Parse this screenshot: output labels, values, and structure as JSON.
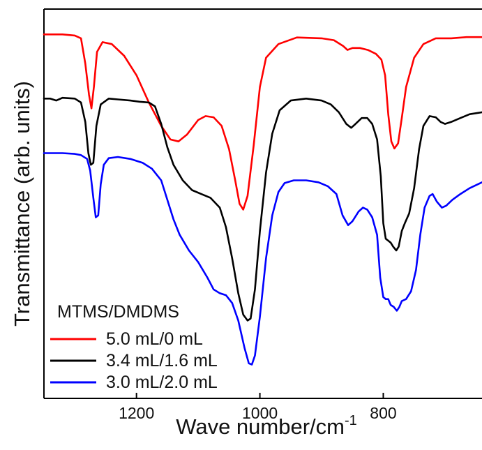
{
  "chart_data": {
    "type": "line",
    "xlabel": "Wave number/cm",
    "xlabel_superscript": "-1",
    "ylabel": "Transmittance (arb. units)",
    "xlim": [
      1350,
      640
    ],
    "ylim": [
      0,
      1
    ],
    "x_reversed": true,
    "grid": false,
    "y_ticks_labeled": false,
    "x_ticks": [
      {
        "value": 1200,
        "label": "1200"
      },
      {
        "value": 1000,
        "label": "1000"
      },
      {
        "value": 800,
        "label": "800"
      }
    ],
    "legend": {
      "title": "MTMS/DMDMS",
      "position": "bottom-left"
    },
    "series": [
      {
        "name": "5.0 mL/0 mL",
        "color": "#ff0000",
        "points": [
          [
            1350,
            0.935
          ],
          [
            1320,
            0.935
          ],
          [
            1300,
            0.932
          ],
          [
            1290,
            0.925
          ],
          [
            1283,
            0.86
          ],
          [
            1277,
            0.78
          ],
          [
            1273,
            0.745
          ],
          [
            1269,
            0.8
          ],
          [
            1264,
            0.89
          ],
          [
            1255,
            0.915
          ],
          [
            1240,
            0.91
          ],
          [
            1220,
            0.88
          ],
          [
            1200,
            0.83
          ],
          [
            1180,
            0.76
          ],
          [
            1160,
            0.7
          ],
          [
            1145,
            0.665
          ],
          [
            1132,
            0.66
          ],
          [
            1118,
            0.678
          ],
          [
            1100,
            0.715
          ],
          [
            1088,
            0.725
          ],
          [
            1075,
            0.722
          ],
          [
            1062,
            0.7
          ],
          [
            1050,
            0.64
          ],
          [
            1040,
            0.56
          ],
          [
            1033,
            0.5
          ],
          [
            1027,
            0.485
          ],
          [
            1020,
            0.52
          ],
          [
            1010,
            0.65
          ],
          [
            1000,
            0.8
          ],
          [
            990,
            0.875
          ],
          [
            970,
            0.91
          ],
          [
            940,
            0.927
          ],
          [
            900,
            0.925
          ],
          [
            880,
            0.92
          ],
          [
            865,
            0.905
          ],
          [
            858,
            0.895
          ],
          [
            850,
            0.9
          ],
          [
            838,
            0.9
          ],
          [
            825,
            0.895
          ],
          [
            812,
            0.885
          ],
          [
            803,
            0.87
          ],
          [
            797,
            0.83
          ],
          [
            792,
            0.73
          ],
          [
            787,
            0.66
          ],
          [
            782,
            0.642
          ],
          [
            776,
            0.655
          ],
          [
            770,
            0.72
          ],
          [
            763,
            0.8
          ],
          [
            750,
            0.875
          ],
          [
            735,
            0.91
          ],
          [
            715,
            0.925
          ],
          [
            690,
            0.925
          ],
          [
            665,
            0.928
          ],
          [
            640,
            0.928
          ]
        ]
      },
      {
        "name": "3.4 mL/1.6 mL",
        "color": "#000000",
        "points": [
          [
            1350,
            0.77
          ],
          [
            1340,
            0.77
          ],
          [
            1330,
            0.765
          ],
          [
            1320,
            0.772
          ],
          [
            1300,
            0.77
          ],
          [
            1290,
            0.76
          ],
          [
            1283,
            0.71
          ],
          [
            1278,
            0.63
          ],
          [
            1274,
            0.6
          ],
          [
            1270,
            0.605
          ],
          [
            1265,
            0.7
          ],
          [
            1258,
            0.755
          ],
          [
            1245,
            0.77
          ],
          [
            1230,
            0.768
          ],
          [
            1210,
            0.765
          ],
          [
            1195,
            0.762
          ],
          [
            1180,
            0.76
          ],
          [
            1170,
            0.75
          ],
          [
            1160,
            0.705
          ],
          [
            1150,
            0.645
          ],
          [
            1140,
            0.6
          ],
          [
            1125,
            0.56
          ],
          [
            1110,
            0.535
          ],
          [
            1095,
            0.525
          ],
          [
            1080,
            0.515
          ],
          [
            1065,
            0.49
          ],
          [
            1055,
            0.44
          ],
          [
            1045,
            0.36
          ],
          [
            1035,
            0.27
          ],
          [
            1027,
            0.215
          ],
          [
            1020,
            0.2
          ],
          [
            1015,
            0.205
          ],
          [
            1008,
            0.28
          ],
          [
            1000,
            0.43
          ],
          [
            990,
            0.58
          ],
          [
            980,
            0.68
          ],
          [
            968,
            0.74
          ],
          [
            950,
            0.765
          ],
          [
            925,
            0.77
          ],
          [
            900,
            0.765
          ],
          [
            885,
            0.755
          ],
          [
            872,
            0.735
          ],
          [
            860,
            0.705
          ],
          [
            852,
            0.695
          ],
          [
            845,
            0.705
          ],
          [
            835,
            0.72
          ],
          [
            826,
            0.72
          ],
          [
            818,
            0.705
          ],
          [
            810,
            0.665
          ],
          [
            804,
            0.57
          ],
          [
            800,
            0.45
          ],
          [
            796,
            0.41
          ],
          [
            792,
            0.405
          ],
          [
            788,
            0.4
          ],
          [
            784,
            0.39
          ],
          [
            779,
            0.38
          ],
          [
            775,
            0.39
          ],
          [
            770,
            0.43
          ],
          [
            765,
            0.45
          ],
          [
            758,
            0.475
          ],
          [
            750,
            0.54
          ],
          [
            742,
            0.64
          ],
          [
            735,
            0.7
          ],
          [
            725,
            0.725
          ],
          [
            715,
            0.722
          ],
          [
            707,
            0.71
          ],
          [
            700,
            0.705
          ],
          [
            690,
            0.71
          ],
          [
            675,
            0.72
          ],
          [
            660,
            0.73
          ],
          [
            640,
            0.735
          ]
        ]
      },
      {
        "name": "3.0 mL/2.0 mL",
        "color": "#0000ff",
        "points": [
          [
            1350,
            0.63
          ],
          [
            1320,
            0.63
          ],
          [
            1300,
            0.628
          ],
          [
            1290,
            0.625
          ],
          [
            1280,
            0.615
          ],
          [
            1275,
            0.585
          ],
          [
            1270,
            0.515
          ],
          [
            1266,
            0.465
          ],
          [
            1262,
            0.47
          ],
          [
            1258,
            0.55
          ],
          [
            1253,
            0.6
          ],
          [
            1245,
            0.617
          ],
          [
            1230,
            0.62
          ],
          [
            1210,
            0.615
          ],
          [
            1190,
            0.605
          ],
          [
            1175,
            0.59
          ],
          [
            1160,
            0.56
          ],
          [
            1150,
            0.51
          ],
          [
            1140,
            0.46
          ],
          [
            1130,
            0.42
          ],
          [
            1115,
            0.38
          ],
          [
            1100,
            0.35
          ],
          [
            1085,
            0.31
          ],
          [
            1075,
            0.28
          ],
          [
            1065,
            0.27
          ],
          [
            1055,
            0.265
          ],
          [
            1045,
            0.245
          ],
          [
            1035,
            0.2
          ],
          [
            1025,
            0.13
          ],
          [
            1018,
            0.09
          ],
          [
            1013,
            0.087
          ],
          [
            1008,
            0.11
          ],
          [
            1000,
            0.21
          ],
          [
            990,
            0.36
          ],
          [
            980,
            0.47
          ],
          [
            970,
            0.53
          ],
          [
            960,
            0.553
          ],
          [
            945,
            0.56
          ],
          [
            925,
            0.56
          ],
          [
            905,
            0.555
          ],
          [
            890,
            0.545
          ],
          [
            876,
            0.525
          ],
          [
            866,
            0.47
          ],
          [
            857,
            0.445
          ],
          [
            850,
            0.455
          ],
          [
            840,
            0.48
          ],
          [
            833,
            0.49
          ],
          [
            826,
            0.485
          ],
          [
            818,
            0.465
          ],
          [
            810,
            0.42
          ],
          [
            805,
            0.31
          ],
          [
            800,
            0.26
          ],
          [
            796,
            0.255
          ],
          [
            792,
            0.255
          ],
          [
            788,
            0.24
          ],
          [
            783,
            0.235
          ],
          [
            778,
            0.225
          ],
          [
            774,
            0.235
          ],
          [
            770,
            0.25
          ],
          [
            763,
            0.255
          ],
          [
            755,
            0.275
          ],
          [
            747,
            0.33
          ],
          [
            740,
            0.42
          ],
          [
            733,
            0.49
          ],
          [
            725,
            0.52
          ],
          [
            720,
            0.525
          ],
          [
            713,
            0.505
          ],
          [
            705,
            0.49
          ],
          [
            698,
            0.495
          ],
          [
            688,
            0.51
          ],
          [
            675,
            0.525
          ],
          [
            660,
            0.54
          ],
          [
            640,
            0.555
          ]
        ]
      }
    ]
  }
}
